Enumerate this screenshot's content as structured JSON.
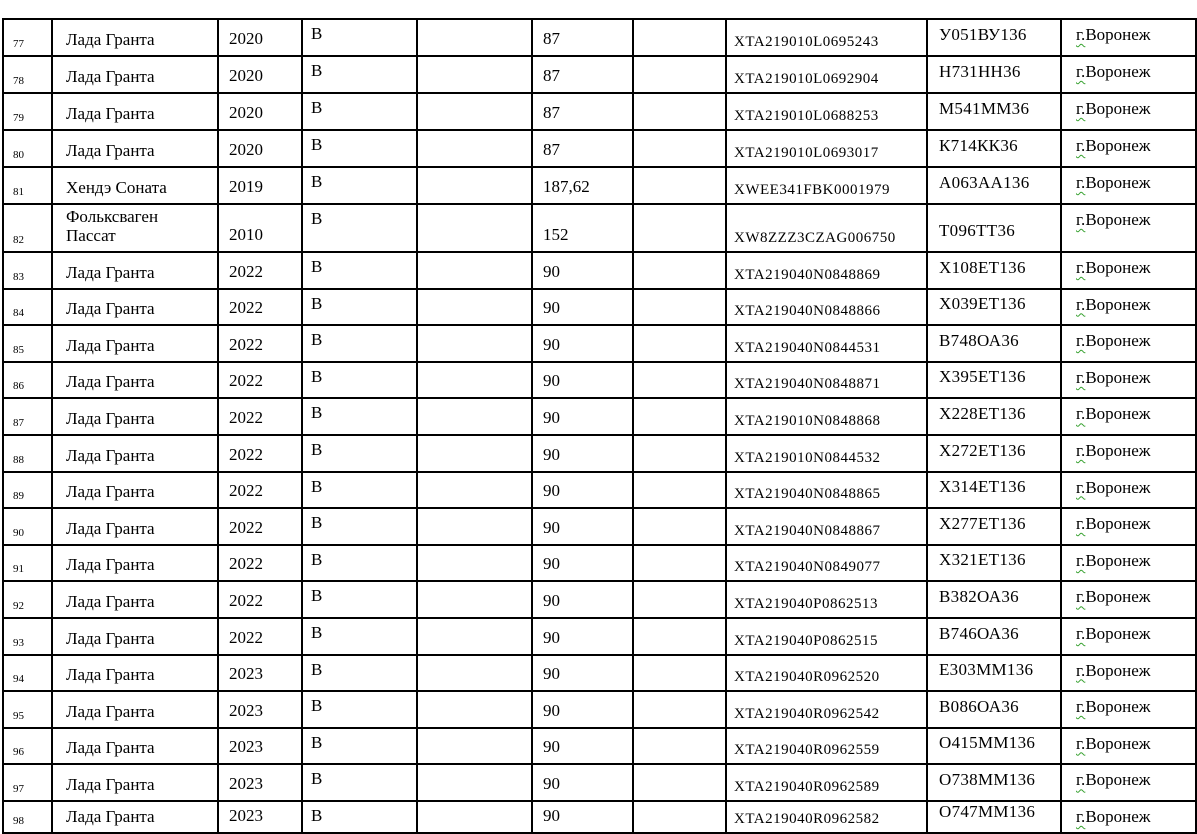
{
  "colors": {
    "grid": "#000000",
    "text": "#000000",
    "page_bg": "#ffffff",
    "spellcheck_squiggle": "#35a02e"
  },
  "table": {
    "rows": [
      {
        "num": "77",
        "name": "Лада Гранта",
        "year": "2020",
        "category": "В",
        "blank1": "",
        "power": "87",
        "blank2": "",
        "vin": "XTA219010L0695243",
        "plate": "У051ВУ136",
        "city_prefix": "г.",
        "city_name": "Воронеж"
      },
      {
        "num": "78",
        "name": "Лада Гранта",
        "year": "2020",
        "category": "В",
        "blank1": "",
        "power": "87",
        "blank2": "",
        "vin": "XTA219010L0692904",
        "plate": "Н731НН36",
        "city_prefix": "г.",
        "city_name": "Воронеж"
      },
      {
        "num": "79",
        "name": "Лада Гранта",
        "year": "2020",
        "category": "В",
        "blank1": "",
        "power": "87",
        "blank2": "",
        "vin": "XTA219010L0688253",
        "plate": "М541ММ36",
        "city_prefix": "г.",
        "city_name": "Воронеж"
      },
      {
        "num": "80",
        "name": "Лада Гранта",
        "year": "2020",
        "category": "В",
        "blank1": "",
        "power": "87",
        "blank2": "",
        "vin": "XTA219010L0693017",
        "plate": "К714КК36",
        "city_prefix": "г.",
        "city_name": "Воронеж"
      },
      {
        "num": "81",
        "name": "Хендэ Соната",
        "year": "2019",
        "category": "В",
        "blank1": "",
        "power": "187,62",
        "blank2": "",
        "vin": "XWEE341FBK0001979",
        "plate": "А063АА136",
        "city_prefix": "г.",
        "city_name": "Воронеж"
      },
      {
        "num": "82",
        "name": "Фольксваген\nПассат",
        "year": "2010",
        "category": "В",
        "blank1": "",
        "power": "152",
        "blank2": "",
        "vin": "XW8ZZZ3CZAG006750",
        "plate": "Т096ТТ36",
        "city_prefix": "г.",
        "city_name": "Воронеж"
      },
      {
        "num": "83",
        "name": "Лада Гранта",
        "year": "2022",
        "category": "В",
        "blank1": "",
        "power": "90",
        "blank2": "",
        "vin": "XTA219040N0848869",
        "plate": "Х108ЕТ136",
        "city_prefix": "г.",
        "city_name": "Воронеж"
      },
      {
        "num": "84",
        "name": "Лада Гранта",
        "year": "2022",
        "category": "В",
        "blank1": "",
        "power": "90",
        "blank2": "",
        "vin": "XTA219040N0848866",
        "plate": "Х039ЕТ136",
        "city_prefix": "г.",
        "city_name": "Воронеж"
      },
      {
        "num": "85",
        "name": "Лада Гранта",
        "year": "2022",
        "category": "В",
        "blank1": "",
        "power": "90",
        "blank2": "",
        "vin": "XTA219040N0844531",
        "plate": "В748ОА36",
        "city_prefix": "г.",
        "city_name": "Воронеж"
      },
      {
        "num": "86",
        "name": "Лада Гранта",
        "year": "2022",
        "category": "В",
        "blank1": "",
        "power": "90",
        "blank2": "",
        "vin": "XTA219040N0848871",
        "plate": "Х395ЕТ136",
        "city_prefix": "г.",
        "city_name": "Воронеж"
      },
      {
        "num": "87",
        "name": "Лада Гранта",
        "year": "2022",
        "category": "В",
        "blank1": "",
        "power": "90",
        "blank2": "",
        "vin": "XTA219010N0848868",
        "plate": "Х228ЕТ136",
        "city_prefix": "г.",
        "city_name": "Воронеж"
      },
      {
        "num": "88",
        "name": "Лада Гранта",
        "year": "2022",
        "category": "В",
        "blank1": "",
        "power": "90",
        "blank2": "",
        "vin": "XTA219010N0844532",
        "plate": "Х272ЕТ136",
        "city_prefix": "г.",
        "city_name": "Воронеж"
      },
      {
        "num": "89",
        "name": "Лада Гранта",
        "year": "2022",
        "category": "В",
        "blank1": "",
        "power": "90",
        "blank2": "",
        "vin": "XTA219040N0848865",
        "plate": "Х314ЕТ136",
        "city_prefix": "г.",
        "city_name": "Воронеж"
      },
      {
        "num": "90",
        "name": "Лада Гранта",
        "year": "2022",
        "category": "В",
        "blank1": "",
        "power": "90",
        "blank2": "",
        "vin": "XTA219040N0848867",
        "plate": "Х277ЕТ136",
        "city_prefix": "г.",
        "city_name": "Воронеж"
      },
      {
        "num": "91",
        "name": "Лада Гранта",
        "year": "2022",
        "category": "В",
        "blank1": "",
        "power": "90",
        "blank2": "",
        "vin": "XTA219040N0849077",
        "plate": "Х321ЕТ136",
        "city_prefix": "г.",
        "city_name": "Воронеж"
      },
      {
        "num": "92",
        "name": "Лада Гранта",
        "year": "2022",
        "category": "В",
        "blank1": "",
        "power": "90",
        "blank2": "",
        "vin": "XTA219040P0862513",
        "plate": "В382ОА36",
        "city_prefix": "г.",
        "city_name": "Воронеж"
      },
      {
        "num": "93",
        "name": "Лада Гранта",
        "year": "2022",
        "category": "В",
        "blank1": "",
        "power": "90",
        "blank2": "",
        "vin": "XTA219040P0862515",
        "plate": "В746ОА36",
        "city_prefix": "г.",
        "city_name": "Воронеж"
      },
      {
        "num": "94",
        "name": "Лада Гранта",
        "year": "2023",
        "category": "В",
        "blank1": "",
        "power": "90",
        "blank2": "",
        "vin": "XTA219040R0962520",
        "plate": "Е303ММ136",
        "city_prefix": "г.",
        "city_name": "Воронеж"
      },
      {
        "num": "95",
        "name": "Лада Гранта",
        "year": "2023",
        "category": "В",
        "blank1": "",
        "power": "90",
        "blank2": "",
        "vin": "XTA219040R0962542",
        "plate": "В086ОА36",
        "city_prefix": "г.",
        "city_name": "Воронеж"
      },
      {
        "num": "96",
        "name": "Лада Гранта",
        "year": "2023",
        "category": "В",
        "blank1": "",
        "power": "90",
        "blank2": "",
        "vin": "XTA219040R0962559",
        "plate": "О415ММ136",
        "city_prefix": "г.",
        "city_name": "Воронеж"
      },
      {
        "num": "97",
        "name": "Лада Гранта",
        "year": "2023",
        "category": "В",
        "blank1": "",
        "power": "90",
        "blank2": "",
        "vin": "XTA219040R0962589",
        "plate": "О738ММ136",
        "city_prefix": "г.",
        "city_name": "Воронеж"
      },
      {
        "num": "98",
        "name": "Лада Гранта",
        "year": "2023",
        "category": "В",
        "blank1": "",
        "power": "90",
        "blank2": "",
        "vin": "XTA219040R0962582",
        "plate": "О747ММ136",
        "city_prefix": "г.",
        "city_name": "Воронеж"
      }
    ]
  }
}
